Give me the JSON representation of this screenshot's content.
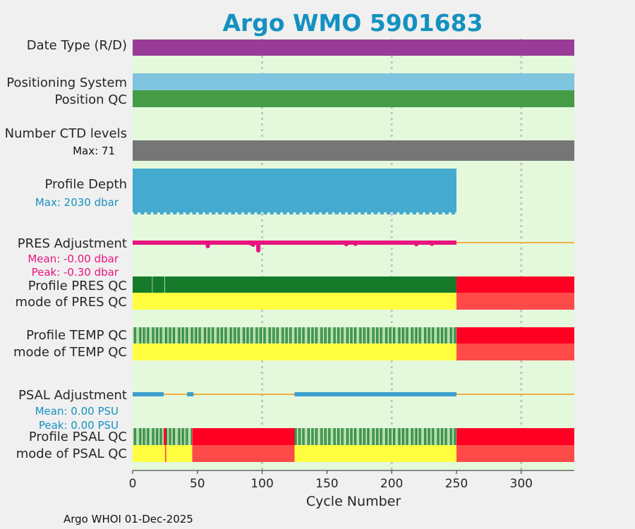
{
  "chart_data": {
    "type": "bar",
    "title": "Argo WMO 5901683",
    "xlabel": "Cycle Number",
    "xlim": [
      0,
      341
    ],
    "xticks": [
      0,
      50,
      100,
      150,
      200,
      250,
      300
    ],
    "grid_x": [
      100,
      200,
      300
    ],
    "footer": "Argo WHOI 01-Dec-2025",
    "last_profile_cycle": 250,
    "colors": {
      "background": "#e4f8dc",
      "data_type": "#983c98",
      "positioning": "#7ec4de",
      "position_qc": "#469c46",
      "ctd_levels": "#767676",
      "profile_depth": "#44aad0",
      "pres_adjust": "#e8137e",
      "psal_adjust": "#3ea0d0",
      "zero_line": "#f0b040",
      "qc_good": "#157a2a",
      "qc_mixed": "#b8ddb0",
      "qc_bad": "#ff0024",
      "mode_yellow": "#ffff40",
      "mode_red": "#ff4a4a"
    },
    "labels": {
      "data_type": "Date Type (R/D)",
      "positioning": "Positioning System",
      "position_qc": "Position QC",
      "ctd_levels": "Number CTD levels",
      "ctd_max": "Max: 71",
      "profile_depth": "Profile Depth",
      "depth_max": "Max: 2030 dbar",
      "pres_adjust": "PRES Adjustment",
      "pres_mean": "Mean: -0.00 dbar",
      "pres_peak": "Peak: -0.30 dbar",
      "pres_qc": "Profile PRES QC",
      "pres_mode": "mode of PRES QC",
      "temp_qc": "Profile TEMP QC",
      "temp_mode": "mode of TEMP QC",
      "psal_adjust": "PSAL Adjustment",
      "psal_mean": "Mean: 0.00 PSU",
      "psal_peak": "Peak: 0.00 PSU",
      "psal_qc": "Profile PSAL QC",
      "psal_mode": "mode of PSAL QC"
    },
    "pres_qc_segments": [
      {
        "from": 0,
        "to": 15,
        "qc": "good"
      },
      {
        "from": 15,
        "to": 15.4,
        "qc": "mixed"
      },
      {
        "from": 15.4,
        "to": 24.5,
        "qc": "good"
      },
      {
        "from": 24.5,
        "to": 25,
        "qc": "mixed"
      },
      {
        "from": 25,
        "to": 250,
        "qc": "good"
      },
      {
        "from": 250,
        "to": 341,
        "qc": "bad"
      }
    ],
    "pres_mode_segments": [
      {
        "from": 0,
        "to": 250,
        "mode": "yellow"
      },
      {
        "from": 250,
        "to": 341,
        "mode": "red"
      }
    ],
    "temp_qc_segments": [
      {
        "from": 0,
        "to": 250,
        "qc": "alternating"
      },
      {
        "from": 250,
        "to": 341,
        "qc": "bad"
      }
    ],
    "temp_mode_segments": [
      {
        "from": 0,
        "to": 250,
        "mode": "yellow"
      },
      {
        "from": 250,
        "to": 341,
        "mode": "red"
      }
    ],
    "psal_qc_segments": [
      {
        "from": 0,
        "to": 24,
        "qc": "alternating"
      },
      {
        "from": 24,
        "to": 26,
        "qc": "bad"
      },
      {
        "from": 26,
        "to": 46,
        "qc": "alternating"
      },
      {
        "from": 46,
        "to": 125,
        "qc": "bad"
      },
      {
        "from": 125,
        "to": 250,
        "qc": "alternating"
      },
      {
        "from": 250,
        "to": 341,
        "qc": "bad"
      }
    ],
    "psal_mode_segments": [
      {
        "from": 0,
        "to": 25,
        "mode": "yellow"
      },
      {
        "from": 25,
        "to": 26,
        "mode": "red"
      },
      {
        "from": 26,
        "to": 46,
        "mode": "yellow"
      },
      {
        "from": 46,
        "to": 125,
        "mode": "red"
      },
      {
        "from": 125,
        "to": 250,
        "mode": "yellow"
      },
      {
        "from": 250,
        "to": 341,
        "mode": "red"
      }
    ],
    "pres_adjust_dips": [
      {
        "cycle": 58,
        "value": -0.15
      },
      {
        "cycle": 91,
        "value": -0.05
      },
      {
        "cycle": 93,
        "value": -0.1
      },
      {
        "cycle": 97,
        "value": -0.3
      },
      {
        "cycle": 165,
        "value": -0.08
      },
      {
        "cycle": 172,
        "value": -0.07
      },
      {
        "cycle": 219,
        "value": -0.08
      },
      {
        "cycle": 231,
        "value": -0.07
      }
    ],
    "psal_adjust_segments": [
      {
        "from": 0,
        "to": 24
      },
      {
        "from": 42,
        "to": 47
      },
      {
        "from": 125,
        "to": 250
      }
    ]
  }
}
